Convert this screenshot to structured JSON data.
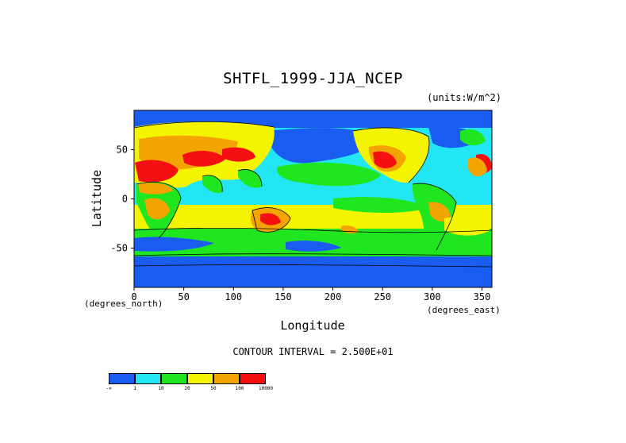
{
  "chart_data": {
    "type": "heatmap",
    "title": "SHTFL_1999-JJA_NCEP",
    "units_label": "(units:W/m^2)",
    "xlabel": "Longitude",
    "ylabel": "Latitude",
    "x_unit_note": "(degrees_east)",
    "y_unit_note": "(degrees_north)",
    "xlim": [
      0,
      360
    ],
    "ylim": [
      -90,
      90
    ],
    "xticks": [
      "0",
      "50",
      "100",
      "150",
      "200",
      "250",
      "300",
      "350"
    ],
    "yticks": [
      "50",
      "0",
      "-50"
    ],
    "contour_interval": "CONTOUR INTERVAL = 2.500E+01",
    "legend": {
      "colors": [
        "#1a5cf0",
        "#22e6f4",
        "#20e620",
        "#f4f400",
        "#f4a400",
        "#f41010"
      ],
      "labels": [
        "-∞",
        "1",
        "10",
        "20",
        "50",
        "100",
        "10000"
      ]
    }
  }
}
